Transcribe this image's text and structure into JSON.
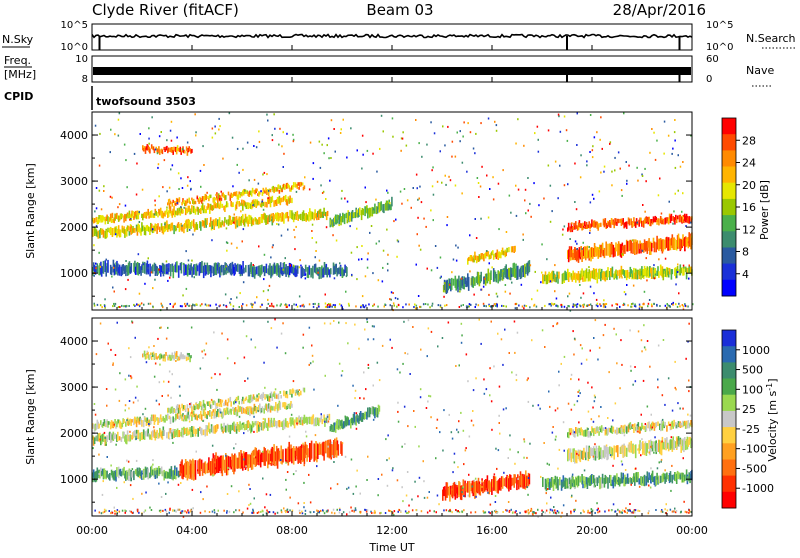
{
  "header": {
    "station": "Clyde River (fitACF)",
    "beam": "Beam 03",
    "date": "28/Apr/2016"
  },
  "chart_data": {
    "type": "heatmap",
    "x_ticks": [
      "00:00",
      "04:00",
      "08:00",
      "12:00",
      "16:00",
      "20:00",
      "00:00"
    ],
    "x_range_hours": [
      0,
      24
    ],
    "xlabel": "Time UT",
    "top_panels": {
      "noise": {
        "left_label": "N.Sky",
        "left_ticks": [
          "10^5",
          "10^0"
        ],
        "right_label": "N.Search",
        "right_ticks": [
          "10^5",
          "10^0"
        ]
      },
      "freq": {
        "left_label_line1": "Freq.",
        "left_label_line2": "[MHz]",
        "left_ticks": [
          "10",
          "8"
        ],
        "right_label": "Nave",
        "right_ticks": [
          "60",
          "0"
        ]
      },
      "cpid": {
        "label": "CPID",
        "program": "twofsound 3503"
      }
    },
    "panels": [
      {
        "name": "power",
        "ylabel": "Slant Range [km]",
        "ylim": [
          200,
          4500
        ],
        "y_ticks": [
          "1000",
          "2000",
          "3000",
          "4000"
        ],
        "y_tick_values": [
          1000,
          2000,
          3000,
          4000
        ],
        "colorbar_label": "Power [dB]",
        "colorbar_ticks": [
          "28",
          "24",
          "20",
          "16",
          "12",
          "8",
          "4"
        ],
        "colorbar_colors": [
          "#ff0000",
          "#ff4a00",
          "#ff8a00",
          "#ffb400",
          "#e6e600",
          "#9ac800",
          "#4ab04a",
          "#3c8c6e",
          "#2a5aa0",
          "#1a30d8",
          "#0000ff"
        ],
        "bands": [
          {
            "t0": 0.0,
            "t1": 10.2,
            "r_start": 1100,
            "r_end": 1050,
            "thick": 200,
            "level": 0.75
          },
          {
            "t0": 0.0,
            "t1": 9.5,
            "r_start": 1850,
            "r_end": 2300,
            "thick": 150,
            "level": 0.4
          },
          {
            "t0": 0.0,
            "t1": 8.0,
            "r_start": 2150,
            "r_end": 2600,
            "thick": 120,
            "level": 0.35
          },
          {
            "t0": 3.0,
            "t1": 8.5,
            "r_start": 2500,
            "r_end": 2900,
            "thick": 100,
            "level": 0.3
          },
          {
            "t0": 9.5,
            "t1": 12.0,
            "r_start": 2100,
            "r_end": 2500,
            "thick": 160,
            "level": 0.55
          },
          {
            "t0": 14.0,
            "t1": 17.5,
            "r_start": 700,
            "r_end": 1100,
            "thick": 220,
            "level": 0.65
          },
          {
            "t0": 15.0,
            "t1": 17.0,
            "r_start": 1300,
            "r_end": 1500,
            "thick": 120,
            "level": 0.35
          },
          {
            "t0": 18.0,
            "t1": 24.0,
            "r_start": 900,
            "r_end": 1050,
            "thick": 180,
            "level": 0.45
          },
          {
            "t0": 19.0,
            "t1": 24.0,
            "r_start": 1400,
            "r_end": 1700,
            "thick": 220,
            "level": 0.2
          },
          {
            "t0": 19.0,
            "t1": 24.0,
            "r_start": 2000,
            "r_end": 2200,
            "thick": 120,
            "level": 0.15
          },
          {
            "t0": 2.0,
            "t1": 4.0,
            "r_start": 3700,
            "r_end": 3650,
            "thick": 100,
            "level": 0.2
          }
        ]
      },
      {
        "name": "velocity",
        "ylabel": "Slant Range [km]",
        "ylim": [
          200,
          4500
        ],
        "y_ticks": [
          "1000",
          "2000",
          "3000",
          "4000"
        ],
        "y_tick_values": [
          1000,
          2000,
          3000,
          4000
        ],
        "colorbar_label": "Velocity [m s",
        "colorbar_label_sup": "-1",
        "colorbar_label_end": "]",
        "colorbar_ticks": [
          "1000",
          "500",
          "100",
          "25",
          "-25",
          "-100",
          "-500",
          "-1000"
        ],
        "colorbar_colors": [
          "#1a2ed8",
          "#2a6ab0",
          "#3c8c6e",
          "#4aa84a",
          "#9ad850",
          "#c8c8c8",
          "#ffd040",
          "#ffa020",
          "#ff7010",
          "#ff3000",
          "#ff0000"
        ],
        "bands": [
          {
            "t0": 0.0,
            "t1": 3.5,
            "r_start": 1100,
            "r_end": 1150,
            "thick": 180,
            "level": 0.32
          },
          {
            "t0": 3.5,
            "t1": 10.0,
            "r_start": 1200,
            "r_end": 1700,
            "thick": 320,
            "level": 0.82
          },
          {
            "t0": 0.0,
            "t1": 9.5,
            "r_start": 1850,
            "r_end": 2300,
            "thick": 150,
            "level": 0.5
          },
          {
            "t0": 0.0,
            "t1": 8.0,
            "r_start": 2150,
            "r_end": 2600,
            "thick": 120,
            "level": 0.5
          },
          {
            "t0": 3.0,
            "t1": 8.5,
            "r_start": 2500,
            "r_end": 2900,
            "thick": 100,
            "level": 0.5
          },
          {
            "t0": 9.5,
            "t1": 11.5,
            "r_start": 2100,
            "r_end": 2500,
            "thick": 160,
            "level": 0.3
          },
          {
            "t0": 14.0,
            "t1": 17.5,
            "r_start": 700,
            "r_end": 1000,
            "thick": 260,
            "level": 0.82
          },
          {
            "t0": 18.0,
            "t1": 24.0,
            "r_start": 900,
            "r_end": 1050,
            "thick": 180,
            "level": 0.3
          },
          {
            "t0": 19.0,
            "t1": 24.0,
            "r_start": 1500,
            "r_end": 1800,
            "thick": 220,
            "level": 0.5
          },
          {
            "t0": 19.0,
            "t1": 24.0,
            "r_start": 2000,
            "r_end": 2200,
            "thick": 120,
            "level": 0.5
          },
          {
            "t0": 2.0,
            "t1": 4.0,
            "r_start": 3700,
            "r_end": 3650,
            "thick": 100,
            "level": 0.5
          }
        ]
      }
    ]
  }
}
